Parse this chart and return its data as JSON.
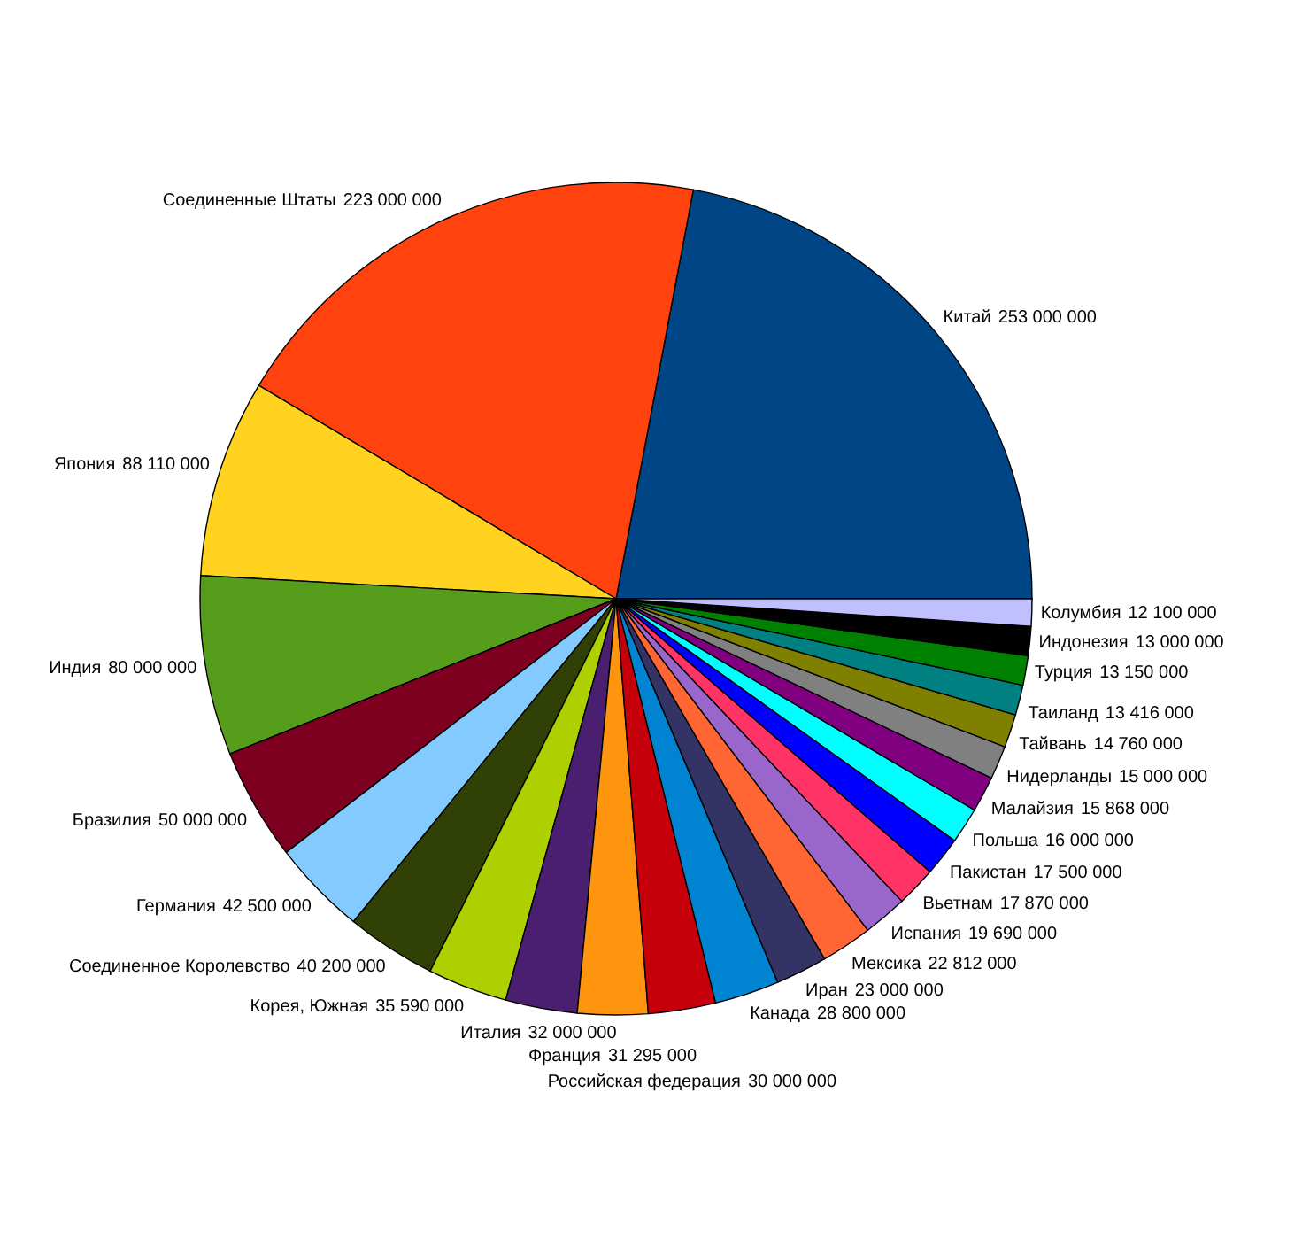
{
  "chart_data": {
    "type": "pie",
    "categories": [
      "Китай",
      "Соединенные Штаты",
      "Япония",
      "Индия",
      "Бразилия",
      "Германия",
      "Соединенное Королевство",
      "Корея, Южная",
      "Италия",
      "Франция",
      "Российская федерация",
      "Канада",
      "Иран",
      "Мексика",
      "Испания",
      "Вьетнам",
      "Пакистан",
      "Польша",
      "Малайзия",
      "Нидерланды",
      "Тайвань",
      "Таиланд",
      "Турция",
      "Индонезия",
      "Колумбия"
    ],
    "values": [
      253000000,
      223000000,
      88110000,
      80000000,
      50000000,
      42500000,
      40200000,
      35590000,
      32000000,
      31295000,
      30000000,
      28800000,
      23000000,
      22812000,
      19690000,
      17870000,
      17500000,
      16000000,
      15868000,
      15000000,
      14760000,
      13416000,
      13150000,
      13000000,
      12100000
    ],
    "value_labels": [
      "253 000 000",
      "223 000 000",
      "88 110 000",
      "80 000 000",
      "50 000 000",
      "42 500 000",
      "40 200 000",
      "35 590 000",
      "32 000 000",
      "31 295 000",
      "30 000 000",
      "28 800 000",
      "23 000 000",
      "22 812 000",
      "19 690 000",
      "17 870 000",
      "17 500 000",
      "16 000 000",
      "15 868 000",
      "15 000 000",
      "14 760 000",
      "13 416 000",
      "13 150 000",
      "13 000 000",
      "12 100 000"
    ],
    "colors": [
      "#004586",
      "#ff420e",
      "#ffd320",
      "#579d1c",
      "#7e0021",
      "#83caff",
      "#314004",
      "#aecf00",
      "#4b1f6f",
      "#ff950e",
      "#c5000b",
      "#0084d1",
      "#333366",
      "#ff6633",
      "#9966cc",
      "#ff3366",
      "#0000ff",
      "#00ffff",
      "#800080",
      "#808080",
      "#808000",
      "#008080",
      "#008000",
      "#000000",
      "#c0c0ff"
    ],
    "legend": false
  }
}
